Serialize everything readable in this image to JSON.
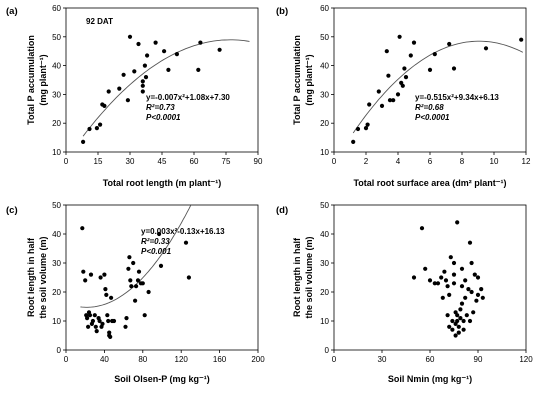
{
  "chart_data": [
    {
      "type": "scatter",
      "panel_label": "(a)",
      "inset_label": "92 DAT",
      "xlabel": "Total root length (m plant⁻¹)",
      "ylabel": "Total P accumulation (mg plant⁻¹)",
      "ylabel_line1": "Total P accumulation",
      "ylabel_line2": "(mg plant⁻¹)",
      "xlim": [
        0,
        90
      ],
      "ylim": [
        10,
        60
      ],
      "xticks": [
        0,
        15,
        30,
        45,
        60,
        75,
        90
      ],
      "yticks": [
        10,
        20,
        30,
        40,
        50,
        60
      ],
      "equation": "y=-0.007x²+1.08x+7.30",
      "r2": "R²=0.73",
      "p": "P<0.0001",
      "fit": {
        "a": -0.007,
        "b": 1.08,
        "c": 7.3,
        "x_range": [
          8,
          86
        ]
      },
      "points": [
        [
          8,
          13.5
        ],
        [
          11,
          18
        ],
        [
          14.5,
          18.3
        ],
        [
          16,
          19.5
        ],
        [
          17,
          26.5
        ],
        [
          18,
          26
        ],
        [
          20,
          31
        ],
        [
          25,
          32
        ],
        [
          27,
          36.8
        ],
        [
          29,
          28
        ],
        [
          30,
          50
        ],
        [
          32,
          38
        ],
        [
          34,
          47.5
        ],
        [
          36,
          34.5
        ],
        [
          36,
          33
        ],
        [
          36,
          31
        ],
        [
          37,
          40
        ],
        [
          37.5,
          36
        ],
        [
          38,
          43.5
        ],
        [
          42,
          48
        ],
        [
          46,
          45
        ],
        [
          48,
          38.5
        ],
        [
          52,
          44
        ],
        [
          62,
          38.5
        ],
        [
          63,
          48
        ],
        [
          72,
          45.5
        ]
      ]
    },
    {
      "type": "scatter",
      "panel_label": "(b)",
      "xlabel": "Total root surface area (dm² plant⁻¹)",
      "ylabel": "Total P accumulation (mg plant⁻¹)",
      "ylabel_line1": "Total P accumulation",
      "ylabel_line2": "(mg plant⁻¹)",
      "xlim": [
        0,
        12
      ],
      "ylim": [
        10,
        60
      ],
      "xticks": [
        0,
        2,
        4,
        6,
        8,
        10,
        12
      ],
      "yticks": [
        10,
        20,
        30,
        40,
        50,
        60
      ],
      "equation": "y=-0.515x²+9.34x+6.13",
      "r2": "R²=0.68",
      "p": "P<0.0001",
      "fit": {
        "a": -0.515,
        "b": 9.34,
        "c": 6.13,
        "x_range": [
          1.2,
          11.8
        ]
      },
      "points": [
        [
          1.2,
          13.5
        ],
        [
          1.5,
          18
        ],
        [
          2,
          18.3
        ],
        [
          2.1,
          19.5
        ],
        [
          2.2,
          26.5
        ],
        [
          2.8,
          31
        ],
        [
          3,
          26
        ],
        [
          3.3,
          45
        ],
        [
          3.4,
          36.5
        ],
        [
          3.5,
          28
        ],
        [
          3.7,
          28
        ],
        [
          4,
          30
        ],
        [
          4.1,
          50
        ],
        [
          4.2,
          34
        ],
        [
          4.3,
          33
        ],
        [
          4.4,
          39
        ],
        [
          4.5,
          36
        ],
        [
          4.8,
          43.5
        ],
        [
          5,
          48
        ],
        [
          6,
          38.5
        ],
        [
          6.3,
          44
        ],
        [
          7.2,
          47.5
        ],
        [
          7.5,
          39
        ],
        [
          9.5,
          46
        ],
        [
          11.7,
          49
        ]
      ]
    },
    {
      "type": "scatter",
      "panel_label": "(c)",
      "xlabel": "Soil Olsen-P (mg kg⁻¹)",
      "ylabel": "Root length in half the soil volume (m)",
      "ylabel_line1": "Root length in half",
      "ylabel_line2": "the soil volume (m)",
      "xlim": [
        0,
        200
      ],
      "ylim": [
        0,
        50
      ],
      "xticks": [
        0,
        40,
        80,
        120,
        160,
        200
      ],
      "yticks": [
        0,
        10,
        20,
        30,
        40,
        50
      ],
      "equation": "y=0.003x²-0.13x+16.13",
      "r2": "R²=0.33",
      "p": "P<0.001",
      "fit": {
        "a": 0.003,
        "b": -0.13,
        "c": 16.13,
        "x_range": [
          15,
          130
        ]
      },
      "points": [
        [
          17,
          42
        ],
        [
          18,
          27
        ],
        [
          20,
          24
        ],
        [
          21,
          12
        ],
        [
          22,
          11
        ],
        [
          23,
          8
        ],
        [
          24,
          13
        ],
        [
          25,
          12
        ],
        [
          26,
          26
        ],
        [
          27,
          9
        ],
        [
          28,
          10
        ],
        [
          30,
          12
        ],
        [
          31,
          8
        ],
        [
          32,
          6.5
        ],
        [
          34,
          11
        ],
        [
          35,
          10
        ],
        [
          36,
          25
        ],
        [
          37,
          8
        ],
        [
          38,
          9
        ],
        [
          40,
          26
        ],
        [
          41,
          21
        ],
        [
          42,
          19
        ],
        [
          43,
          12
        ],
        [
          44,
          10
        ],
        [
          45,
          6
        ],
        [
          45,
          5
        ],
        [
          46,
          4.5
        ],
        [
          47,
          18
        ],
        [
          48,
          10
        ],
        [
          50,
          10
        ],
        [
          62,
          8
        ],
        [
          63,
          11
        ],
        [
          65,
          28
        ],
        [
          66,
          32
        ],
        [
          67,
          24
        ],
        [
          68,
          22
        ],
        [
          70,
          30
        ],
        [
          72,
          17
        ],
        [
          73,
          22
        ],
        [
          75,
          24
        ],
        [
          76,
          27
        ],
        [
          78,
          23
        ],
        [
          80,
          23
        ],
        [
          82,
          12
        ],
        [
          86,
          20
        ],
        [
          97,
          40
        ],
        [
          99,
          29
        ],
        [
          125,
          37
        ],
        [
          128,
          25
        ]
      ]
    },
    {
      "type": "scatter",
      "panel_label": "(d)",
      "xlabel": "Soil Nmin (mg kg⁻¹)",
      "ylabel": "Root length in half the soil volume (m)",
      "ylabel_line1": "Root length in half",
      "ylabel_line2": "the soil volume (m)",
      "xlim": [
        0,
        120
      ],
      "ylim": [
        0,
        50
      ],
      "xticks": [
        0,
        30,
        60,
        90,
        120
      ],
      "yticks": [
        0,
        10,
        20,
        30,
        40,
        50
      ],
      "points": [
        [
          50,
          25
        ],
        [
          55,
          42
        ],
        [
          57,
          28
        ],
        [
          60,
          24
        ],
        [
          63,
          23
        ],
        [
          65,
          23
        ],
        [
          67,
          25
        ],
        [
          68,
          18
        ],
        [
          69,
          27
        ],
        [
          70,
          24
        ],
        [
          71,
          12
        ],
        [
          71,
          22
        ],
        [
          72,
          19
        ],
        [
          72,
          8
        ],
        [
          73,
          32
        ],
        [
          74,
          10
        ],
        [
          74,
          7
        ],
        [
          75,
          30
        ],
        [
          75,
          26
        ],
        [
          75,
          23
        ],
        [
          76,
          13
        ],
        [
          76,
          9
        ],
        [
          76,
          5
        ],
        [
          77,
          44
        ],
        [
          77,
          12
        ],
        [
          77,
          10
        ],
        [
          78,
          8
        ],
        [
          78,
          6
        ],
        [
          79,
          14
        ],
        [
          79,
          11
        ],
        [
          80,
          28
        ],
        [
          80,
          22
        ],
        [
          80,
          16
        ],
        [
          81,
          10
        ],
        [
          81,
          7
        ],
        [
          82,
          24
        ],
        [
          82,
          18
        ],
        [
          83,
          12
        ],
        [
          84,
          21
        ],
        [
          85,
          37
        ],
        [
          85,
          10
        ],
        [
          86,
          30
        ],
        [
          86,
          20
        ],
        [
          87,
          13
        ],
        [
          88,
          26
        ],
        [
          89,
          17
        ],
        [
          90,
          25
        ],
        [
          90,
          19
        ],
        [
          92,
          21
        ],
        [
          93,
          18
        ]
      ]
    }
  ]
}
